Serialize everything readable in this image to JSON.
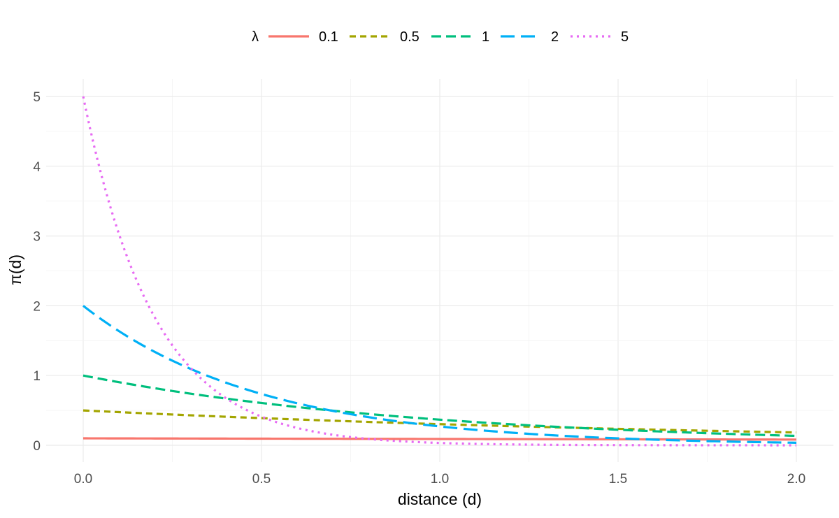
{
  "chart_data": {
    "type": "line",
    "title": "",
    "xlabel": "distance (d)",
    "ylabel": "π(d)",
    "xlim": [
      0,
      2
    ],
    "ylim": [
      0,
      5
    ],
    "x_ticks": [
      "0.0",
      "0.5",
      "1.0",
      "1.5",
      "2.0"
    ],
    "y_ticks": [
      "0",
      "1",
      "2",
      "3",
      "4",
      "5"
    ],
    "grid": true,
    "legend": {
      "title": "λ",
      "position": "top"
    },
    "function": "λ·exp(−λ·d)",
    "series": [
      {
        "name": "0.1",
        "lambda": 0.1,
        "color": "#F8766D",
        "dash": "solid",
        "x": [
          0,
          0.5,
          1.0,
          1.5,
          2.0
        ],
        "values": [
          0.1,
          0.095,
          0.09,
          0.086,
          0.082
        ]
      },
      {
        "name": "0.5",
        "lambda": 0.5,
        "color": "#A3A500",
        "dash": "short-dash",
        "x": [
          0,
          0.5,
          1.0,
          1.5,
          2.0
        ],
        "values": [
          0.5,
          0.389,
          0.303,
          0.236,
          0.184
        ]
      },
      {
        "name": "1",
        "lambda": 1,
        "color": "#00BF7D",
        "dash": "dash",
        "x": [
          0,
          0.5,
          1.0,
          1.5,
          2.0
        ],
        "values": [
          1.0,
          0.607,
          0.368,
          0.223,
          0.135
        ]
      },
      {
        "name": "2",
        "lambda": 2,
        "color": "#00B0F6",
        "dash": "long-dash",
        "x": [
          0,
          0.5,
          1.0,
          1.5,
          2.0
        ],
        "values": [
          2.0,
          0.736,
          0.271,
          0.1,
          0.037
        ]
      },
      {
        "name": "5",
        "lambda": 5,
        "color": "#E76BF3",
        "dash": "dotted",
        "x": [
          0,
          0.5,
          1.0,
          1.5,
          2.0
        ],
        "values": [
          5.0,
          0.41,
          0.034,
          0.003,
          0.0
        ]
      }
    ]
  }
}
